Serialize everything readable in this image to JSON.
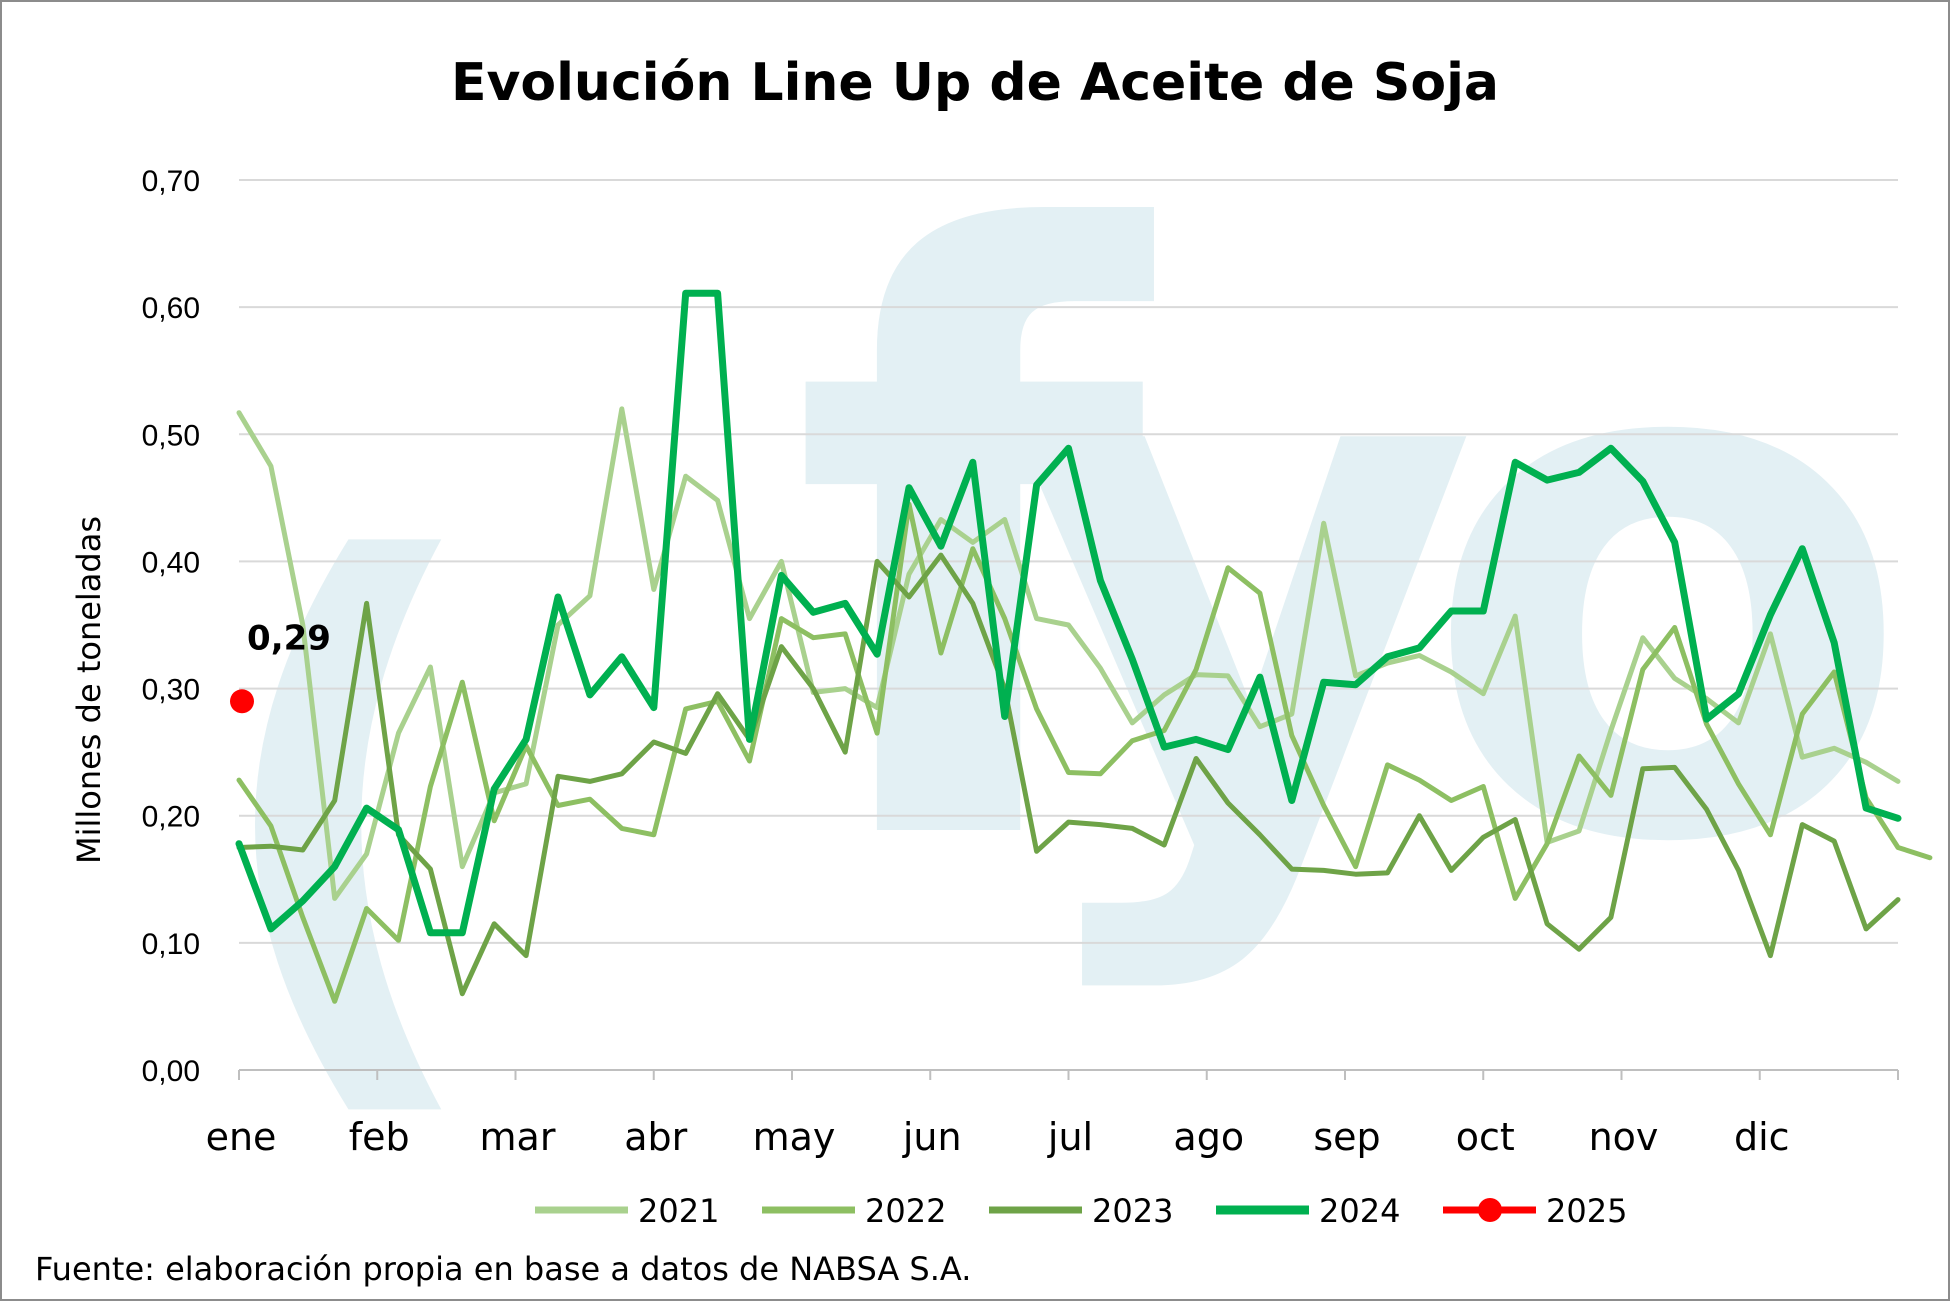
{
  "chart_data": {
    "type": "line",
    "title": "Evolución Line Up de Aceite de Soja",
    "ylabel": "Millones de toneladas",
    "xlabel": "",
    "ylim": [
      0,
      0.7
    ],
    "yticks": [
      "0,00",
      "0,10",
      "0,20",
      "0,30",
      "0,40",
      "0,50",
      "0,60",
      "0,70"
    ],
    "ytick_values": [
      0,
      0.1,
      0.2,
      0.3,
      0.4,
      0.5,
      0.6,
      0.7
    ],
    "months": [
      "ene",
      "feb",
      "mar",
      "abr",
      "may",
      "jun",
      "jul",
      "ago",
      "sep",
      "oct",
      "nov",
      "dic"
    ],
    "weeks_per_year": 52,
    "grid": true,
    "legend_position": "bottom",
    "series": [
      {
        "name": "2021",
        "color": "#a9d18e",
        "width": 5,
        "values": [
          0.517,
          0.475,
          0.35,
          0.135,
          0.17,
          0.265,
          0.317,
          0.16,
          0.218,
          0.225,
          0.35,
          0.373,
          0.52,
          0.378,
          0.467,
          0.448,
          0.355,
          0.4,
          0.297,
          0.3,
          0.285,
          0.39,
          0.433,
          0.415,
          0.433,
          0.355,
          0.35,
          0.316,
          0.273,
          0.295,
          0.311,
          0.31,
          0.27,
          0.28,
          0.43,
          0.31,
          0.32,
          0.326,
          0.313,
          0.296,
          0.357,
          0.179,
          0.188,
          0.267,
          0.34,
          0.308,
          0.292,
          0.273,
          0.343,
          0.246,
          0.253,
          0.242,
          0.227
        ]
      },
      {
        "name": "2022",
        "color": "#8dbf62",
        "width": 5,
        "values": [
          0.228,
          0.192,
          0.12,
          0.054,
          0.127,
          0.102,
          0.223,
          0.305,
          0.196,
          0.255,
          0.208,
          0.213,
          0.19,
          0.185,
          0.284,
          0.29,
          0.243,
          0.355,
          0.34,
          0.343,
          0.265,
          0.445,
          0.328,
          0.41,
          0.355,
          0.284,
          0.234,
          0.233,
          0.259,
          0.267,
          0.315,
          0.395,
          0.375,
          0.263,
          0.208,
          0.16,
          0.24,
          0.228,
          0.212,
          0.223,
          0.135,
          0.178,
          0.247,
          0.216,
          0.315,
          0.348,
          0.272,
          0.225,
          0.185,
          0.28,
          0.313,
          0.214,
          0.175,
          0.167
        ]
      },
      {
        "name": "2023",
        "color": "#6ea347",
        "width": 5,
        "values": [
          0.175,
          0.176,
          0.173,
          0.212,
          0.367,
          0.185,
          0.158,
          0.06,
          0.115,
          0.09,
          0.231,
          0.227,
          0.233,
          0.258,
          0.249,
          0.296,
          0.26,
          0.333,
          0.3,
          0.25,
          0.4,
          0.372,
          0.405,
          0.367,
          0.3,
          0.172,
          0.195,
          0.193,
          0.19,
          0.177,
          0.245,
          0.21,
          0.185,
          0.158,
          0.157,
          0.154,
          0.155,
          0.2,
          0.157,
          0.183,
          0.197,
          0.115,
          0.095,
          0.12,
          0.237,
          0.238,
          0.205,
          0.157,
          0.09,
          0.193,
          0.18,
          0.111,
          0.134
        ]
      },
      {
        "name": "2024",
        "color": "#00b050",
        "width": 7,
        "values": [
          0.178,
          0.111,
          0.133,
          0.16,
          0.206,
          0.189,
          0.108,
          0.108,
          0.221,
          0.26,
          0.372,
          0.295,
          0.325,
          0.285,
          0.611,
          0.611,
          0.26,
          0.389,
          0.36,
          0.367,
          0.327,
          0.458,
          0.412,
          0.478,
          0.278,
          0.46,
          0.489,
          0.385,
          0.323,
          0.254,
          0.26,
          0.252,
          0.309,
          0.212,
          0.305,
          0.303,
          0.325,
          0.332,
          0.361,
          0.361,
          0.478,
          0.464,
          0.47,
          0.489,
          0.463,
          0.415,
          0.276,
          0.296,
          0.358,
          0.41,
          0.336,
          0.206,
          0.198
        ]
      },
      {
        "name": "2025",
        "color": "#ff0000",
        "width": 5,
        "marker": "circle",
        "values": [
          0.29
        ],
        "data_labels": [
          "0,29"
        ]
      }
    ],
    "annotations": []
  },
  "watermark": "fyo",
  "source": "Fuente: elaboración propia en base a datos de NABSA S.A."
}
